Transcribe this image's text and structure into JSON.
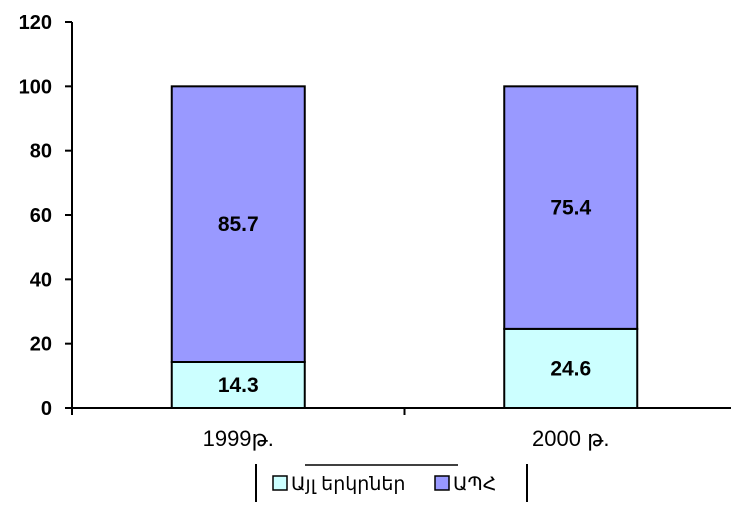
{
  "chart_data": {
    "type": "bar",
    "stacked": true,
    "categories": [
      "1999թ.",
      "2000 թ."
    ],
    "series": [
      {
        "name": "Այլ երկրներ",
        "values": [
          14.3,
          24.6
        ],
        "color": "#ccffff"
      },
      {
        "name": "ԱՊՀ",
        "values": [
          85.7,
          75.4
        ],
        "color": "#9999ff"
      }
    ],
    "ylim": [
      0,
      120
    ],
    "yticks": [
      "0",
      "20",
      "40",
      "60",
      "80",
      "100",
      "120"
    ],
    "grid": false,
    "legend_position": "bottom"
  }
}
